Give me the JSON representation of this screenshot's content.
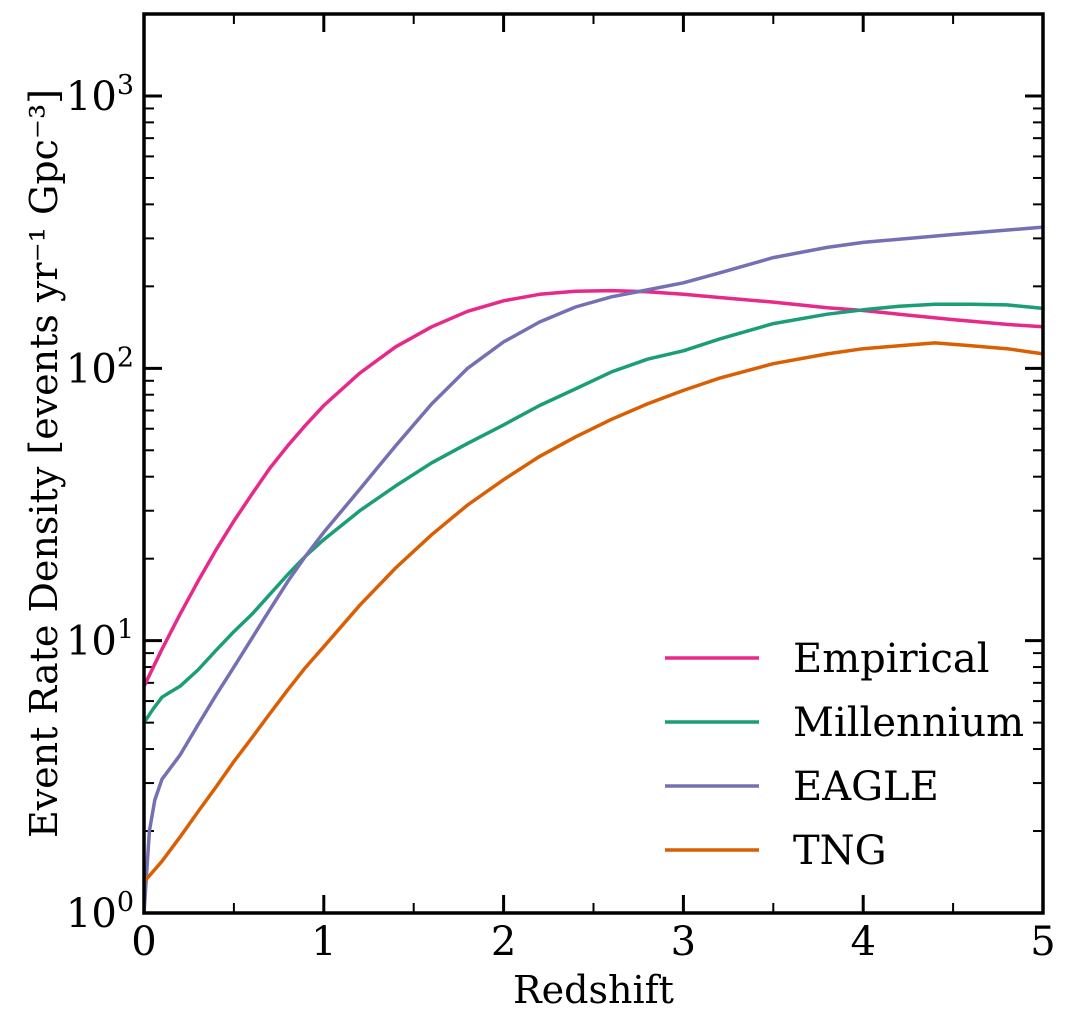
{
  "chart_data": {
    "type": "line",
    "xlabel": "Redshift",
    "ylabel": "Event Rate Density [events yr⁻¹ Gpc⁻³]",
    "xlim": [
      0,
      5
    ],
    "ylim": [
      1,
      2000
    ],
    "yscale": "log",
    "grid": false,
    "legend": "lower-right",
    "x_ticks": [
      "0",
      "1",
      "2",
      "3",
      "4",
      "5"
    ],
    "y_ticks": [
      {
        "base": "10",
        "exp": "0"
      },
      {
        "base": "10",
        "exp": "1"
      },
      {
        "base": "10",
        "exp": "2"
      },
      {
        "base": "10",
        "exp": "3"
      }
    ],
    "series": [
      {
        "name": "Empirical",
        "color": "#e7298a",
        "x": [
          0,
          0.1,
          0.2,
          0.3,
          0.4,
          0.5,
          0.6,
          0.7,
          0.8,
          0.9,
          1.0,
          1.2,
          1.4,
          1.6,
          1.8,
          2.0,
          2.2,
          2.4,
          2.6,
          2.8,
          3.0,
          3.2,
          3.5,
          3.8,
          4.0,
          4.2,
          4.5,
          4.8,
          5.0
        ],
        "y": [
          6.8,
          9.3,
          12.5,
          16.5,
          21.5,
          27.5,
          34.5,
          43,
          52,
          62,
          73,
          96,
          120,
          142,
          162,
          177,
          187,
          192,
          193,
          191,
          187,
          182,
          175,
          167,
          163,
          158,
          151,
          145,
          142
        ]
      },
      {
        "name": "Millennium",
        "color": "#1b9e77",
        "x": [
          0,
          0.05,
          0.1,
          0.15,
          0.2,
          0.3,
          0.4,
          0.5,
          0.6,
          0.7,
          0.8,
          0.9,
          1.0,
          1.2,
          1.4,
          1.6,
          1.8,
          2.0,
          2.2,
          2.4,
          2.6,
          2.8,
          3.0,
          3.2,
          3.5,
          3.8,
          4.0,
          4.2,
          4.4,
          4.6,
          4.8,
          5.0
        ],
        "y": [
          5.0,
          5.6,
          6.2,
          6.5,
          6.8,
          7.8,
          9.2,
          10.8,
          12.5,
          14.8,
          17.5,
          20.5,
          23.5,
          30,
          37,
          45,
          53,
          62,
          73,
          84,
          97,
          108,
          116,
          128,
          146,
          158,
          164,
          169,
          172,
          172,
          171,
          166
        ]
      },
      {
        "name": "EAGLE",
        "color": "#7570b3",
        "x": [
          0,
          0.03,
          0.06,
          0.1,
          0.2,
          0.3,
          0.4,
          0.5,
          0.6,
          0.7,
          0.8,
          0.9,
          1.0,
          1.2,
          1.4,
          1.6,
          1.8,
          2.0,
          2.2,
          2.4,
          2.6,
          2.8,
          3.0,
          3.2,
          3.5,
          3.8,
          4.0,
          4.5,
          5.0
        ],
        "y": [
          1.0,
          2.0,
          2.6,
          3.1,
          3.8,
          4.9,
          6.3,
          8.0,
          10.2,
          13,
          16.5,
          20.5,
          25,
          36,
          52,
          74,
          100,
          125,
          148,
          168,
          183,
          194,
          206,
          224,
          255,
          278,
          290,
          310,
          330
        ]
      },
      {
        "name": "TNG",
        "color": "#d95f02",
        "x": [
          0,
          0.1,
          0.2,
          0.3,
          0.4,
          0.5,
          0.6,
          0.7,
          0.8,
          0.9,
          1.0,
          1.2,
          1.4,
          1.6,
          1.8,
          2.0,
          2.2,
          2.4,
          2.6,
          2.8,
          3.0,
          3.2,
          3.5,
          3.8,
          4.0,
          4.2,
          4.4,
          4.6,
          4.8,
          5.0
        ],
        "y": [
          1.3,
          1.55,
          1.9,
          2.35,
          2.9,
          3.6,
          4.4,
          5.4,
          6.6,
          8.0,
          9.5,
          13.5,
          18.5,
          24.5,
          31.5,
          39,
          47.5,
          56,
          65,
          74,
          83,
          92,
          104,
          113,
          118,
          121,
          124,
          121,
          118,
          113
        ]
      }
    ]
  }
}
